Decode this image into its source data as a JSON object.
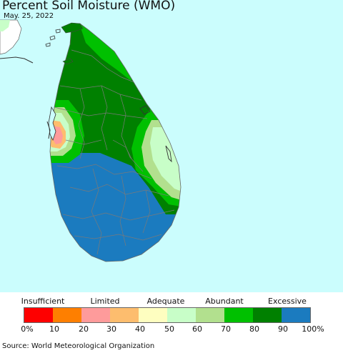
{
  "header": {
    "title": "Percent Soil Moisture (WMO)",
    "date": "May. 25, 2022"
  },
  "colors": {
    "ocean": "#cbfdfd",
    "land_base": "#1b7bbf",
    "border": "#7a7a7a"
  },
  "legend": {
    "categories": [
      "Insufficient",
      "Limited",
      "Adequate",
      "Abundant",
      "Excessive"
    ],
    "colors": [
      "#fe0000",
      "#fe7f00",
      "#fe9b9b",
      "#fdbd6e",
      "#fefec0",
      "#c8fec8",
      "#b2e08e",
      "#00c000",
      "#008000",
      "#1b7bbf"
    ],
    "ticks": [
      "0%",
      "10",
      "20",
      "30",
      "40",
      "50",
      "60",
      "70",
      "80",
      "90",
      "100%"
    ]
  },
  "footer": {
    "source": "Source: World Meteorological Organization"
  }
}
